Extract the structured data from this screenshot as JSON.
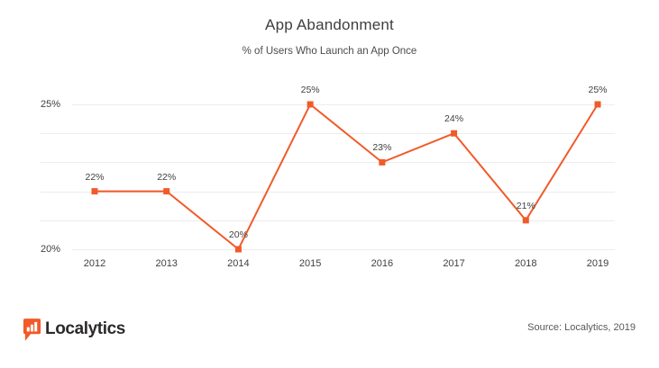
{
  "header": {
    "title": "App Abandonment",
    "subtitle": "% of Users Who Launch an App Once"
  },
  "chart_data": {
    "type": "line",
    "title": "App Abandonment",
    "subtitle": "% of Users Who Launch an App Once",
    "categories": [
      "2012",
      "2013",
      "2014",
      "2015",
      "2016",
      "2017",
      "2018",
      "2019"
    ],
    "values": [
      22,
      22,
      20,
      25,
      23,
      24,
      21,
      25
    ],
    "point_labels": [
      "22%",
      "22%",
      "20%",
      "25%",
      "23%",
      "24%",
      "21%",
      "25%"
    ],
    "xlabel": "",
    "ylabel": "",
    "ylim": [
      20,
      25
    ],
    "yticks": [
      25,
      24,
      23,
      22,
      21,
      20
    ],
    "ytick_labels": [
      "25%",
      "",
      "",
      "",
      "",
      "20%"
    ],
    "grid": true,
    "legend": "none",
    "line_color": "#f15a29",
    "marker": "square"
  },
  "footer": {
    "logo_text": "Localytics",
    "source": "Source: Localytics, 2019"
  },
  "colors": {
    "accent": "#f15a29",
    "text_dark": "#3e3e40",
    "text_gray": "#57585a",
    "gridline": "#edecee",
    "logo_text": "#2d2a2c"
  }
}
